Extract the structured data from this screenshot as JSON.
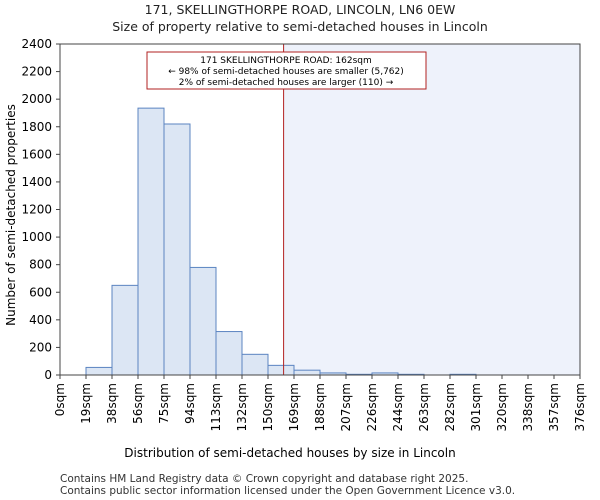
{
  "title": {
    "line1": "171, SKELLINGTHORPE ROAD, LINCOLN, LN6 0EW",
    "line2": "Size of property relative to semi-detached houses in Lincoln"
  },
  "footer": {
    "line1": "Contains HM Land Registry data © Crown copyright and database right 2025.",
    "line2": "Contains public sector information licensed under the Open Government Licence v3.0."
  },
  "chart_data": {
    "type": "bar",
    "xlabel": "Distribution of semi-detached houses by size in Lincoln",
    "ylabel": "Number of semi-detached properties",
    "ylim": [
      0,
      2400
    ],
    "yticks": [
      0,
      200,
      400,
      600,
      800,
      1000,
      1200,
      1400,
      1600,
      1800,
      2000,
      2200,
      2400
    ],
    "bin_edges": [
      0,
      19,
      38,
      56,
      75,
      94,
      113,
      132,
      150,
      169,
      188,
      207,
      226,
      244,
      263,
      282,
      301,
      320,
      338,
      357,
      376
    ],
    "tick_labels": [
      "0sqm",
      "19sqm",
      "38sqm",
      "56sqm",
      "75sqm",
      "94sqm",
      "113sqm",
      "132sqm",
      "150sqm",
      "169sqm",
      "188sqm",
      "207sqm",
      "226sqm",
      "244sqm",
      "263sqm",
      "282sqm",
      "301sqm",
      "320sqm",
      "338sqm",
      "357sqm",
      "376sqm"
    ],
    "values": [
      0,
      55,
      650,
      1935,
      1820,
      780,
      315,
      150,
      70,
      35,
      15,
      5,
      15,
      5,
      0,
      5,
      0,
      0,
      0,
      0
    ],
    "property_bin_index": 8.6,
    "annotation": {
      "line1": "171 SKELLINGTHORPE ROAD: 162sqm",
      "line2": "← 98% of semi-detached houses are smaller (5,762)",
      "line3": "2% of semi-detached houses are larger (110) →"
    },
    "colors": {
      "bar_fill": "#dce6f4",
      "bar_edge": "#5b84c1",
      "highlight_region": "#eef2fb",
      "marker_line": "#b22222",
      "annotation_border": "#b22222"
    }
  }
}
